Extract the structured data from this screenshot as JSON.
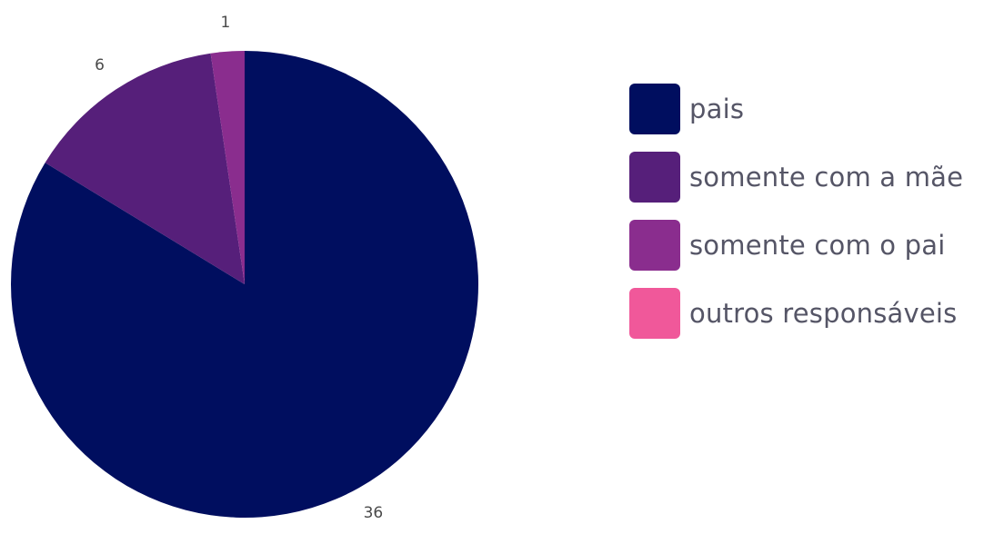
{
  "chart_data": {
    "type": "pie",
    "title": "",
    "categories": [
      "pais",
      "somente com a mãe",
      "somente com o pai",
      "outros responsáveis"
    ],
    "values": [
      36,
      6,
      1,
      0
    ],
    "colors": [
      "#000e5f",
      "#561f7a",
      "#8a2d8e",
      "#f0589a"
    ],
    "start_angle": "12 o'clock",
    "direction": "clockwise",
    "legend_position": "right",
    "data_labels": [
      "36",
      "6",
      "1",
      ""
    ]
  }
}
